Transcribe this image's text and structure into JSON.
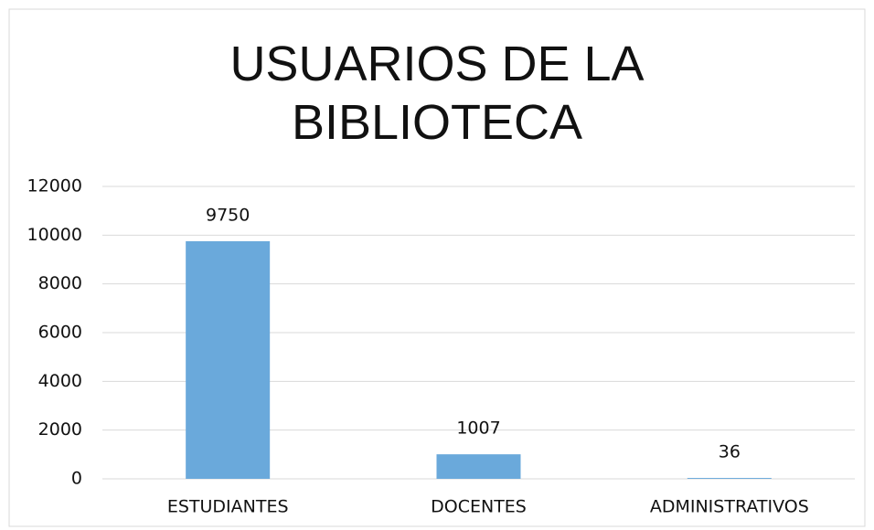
{
  "chart_data": {
    "type": "bar",
    "title": "USUARIOS DE LA BIBLIOTECA",
    "categories": [
      "ESTUDIANTES",
      "DOCENTES",
      "ADMINISTRATIVOS"
    ],
    "values": [
      9750,
      1007,
      36
    ],
    "color": "#6aa9db",
    "ylim": [
      0,
      12000
    ],
    "yticks": [
      0,
      2000,
      4000,
      6000,
      8000,
      10000,
      12000
    ],
    "grid": true
  }
}
